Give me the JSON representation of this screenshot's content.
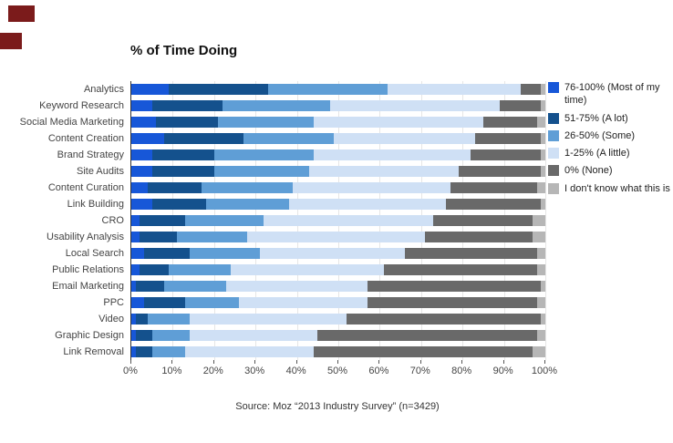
{
  "page": {
    "background": "#ffffff",
    "artifact_color": "#7b1b1b"
  },
  "chart_data": {
    "type": "bar",
    "orientation": "horizontal",
    "stacked": true,
    "title": "% of Time Doing",
    "source": "Source: Moz “2013 Industry Survey” (n=3429)",
    "legend_position": "right",
    "grid": true,
    "xlim": [
      0,
      100
    ],
    "x_ticks": [
      "0%",
      "10%",
      "20%",
      "30%",
      "40%",
      "50%",
      "60%",
      "70%",
      "80%",
      "90%",
      "100%"
    ],
    "categories": [
      "Analytics",
      "Keyword Research",
      "Social Media Marketing",
      "Content Creation",
      "Brand Strategy",
      "Site Audits",
      "Content Curation",
      "Link Building",
      "CRO",
      "Usability Analysis",
      "Local Search",
      "Public Relations",
      "Email Marketing",
      "PPC",
      "Video",
      "Graphic Design",
      "Link Removal"
    ],
    "series": [
      {
        "name": "76-100% (Most of my time)",
        "color": "#1757d8",
        "values": [
          9,
          5,
          6,
          8,
          5,
          5,
          4,
          5,
          2,
          2,
          3,
          2,
          1,
          3,
          1,
          1,
          1
        ]
      },
      {
        "name": "51-75% (A lot)",
        "color": "#14518d",
        "values": [
          24,
          17,
          15,
          19,
          15,
          15,
          13,
          13,
          11,
          9,
          11,
          7,
          7,
          10,
          3,
          4,
          4
        ]
      },
      {
        "name": "26-50% (Some)",
        "color": "#5f9ed6",
        "values": [
          29,
          26,
          23,
          22,
          24,
          23,
          22,
          20,
          19,
          17,
          17,
          15,
          15,
          13,
          10,
          9,
          8
        ]
      },
      {
        "name": "1-25% (A little)",
        "color": "#cfe0f5",
        "values": [
          32,
          41,
          41,
          34,
          38,
          36,
          38,
          38,
          41,
          43,
          35,
          37,
          34,
          31,
          38,
          31,
          31
        ]
      },
      {
        "name": "0% (None)",
        "color": "#696969",
        "values": [
          5,
          10,
          13,
          16,
          17,
          20,
          21,
          23,
          24,
          26,
          32,
          37,
          42,
          41,
          47,
          53,
          53
        ]
      },
      {
        "name": "I don't know what this is",
        "color": "#b6b6b6",
        "values": [
          1,
          1,
          2,
          1,
          1,
          1,
          2,
          1,
          3,
          3,
          2,
          2,
          1,
          2,
          1,
          2,
          3
        ]
      }
    ]
  }
}
